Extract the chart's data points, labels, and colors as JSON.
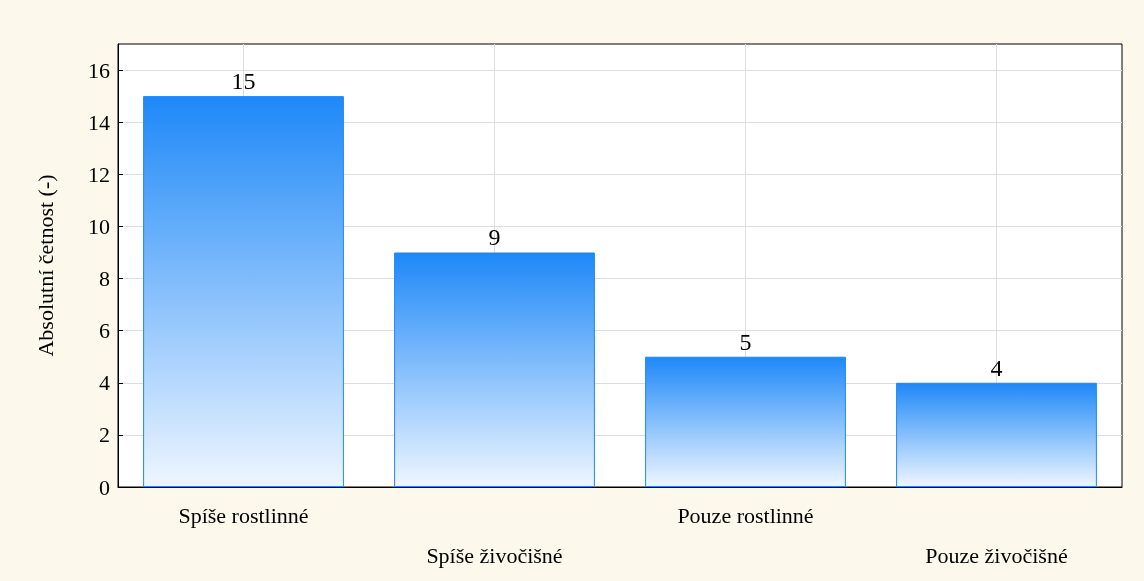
{
  "chart_data": {
    "type": "bar",
    "ylabel": "Absolutní četnost (-)",
    "categories": [
      "Spíše rostlinné",
      "Spíše živočišné",
      "Pouze rostlinné",
      "Pouze živočišné"
    ],
    "values": [
      15,
      9,
      5,
      4
    ],
    "color": "#1e88f8",
    "ylim": [
      0,
      17
    ],
    "yticks": [
      0,
      2,
      4,
      6,
      8,
      10,
      12,
      14,
      16
    ],
    "grid": true,
    "data_labels": true
  }
}
